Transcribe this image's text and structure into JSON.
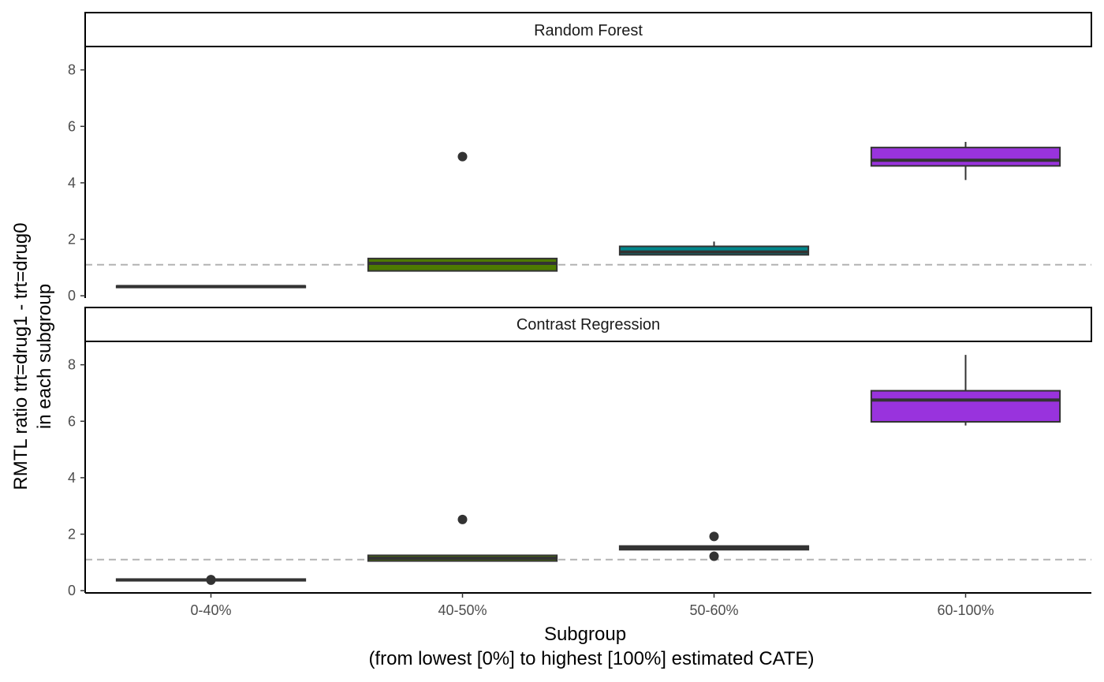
{
  "chart_data": {
    "type": "box",
    "xlabel": "Subgroup",
    "xlabel_sub": "(from lowest [0%] to highest [100%] estimated CATE)",
    "ylabel": "RMTL ratio trt=drug1 - trt=drug0",
    "ylabel_sub": "in each subgroup",
    "categories": [
      "0-40%",
      "40-50%",
      "50-60%",
      "60-100%"
    ],
    "yticks": [
      0,
      2,
      4,
      6,
      8
    ],
    "ylim": [
      -0.08,
      8.8
    ],
    "reference_line": 1.1,
    "colors": [
      "#F8766D",
      "#4D7A00",
      "#00868B",
      "#9933DD"
    ],
    "panels": [
      {
        "title": "Random Forest",
        "boxes": [
          {
            "category": "0-40%",
            "min": 0.31,
            "q1": 0.31,
            "median": 0.33,
            "q3": 0.35,
            "max": 0.35,
            "outliers": []
          },
          {
            "category": "40-50%",
            "min": 0.88,
            "q1": 0.88,
            "median": 1.15,
            "q3": 1.32,
            "max": 1.32,
            "outliers": [
              4.93
            ]
          },
          {
            "category": "50-60%",
            "min": 1.45,
            "q1": 1.45,
            "median": 1.55,
            "q3": 1.75,
            "max": 1.92,
            "outliers": []
          },
          {
            "category": "60-100%",
            "min": 4.1,
            "q1": 4.6,
            "median": 4.8,
            "q3": 5.25,
            "max": 5.45,
            "outliers": []
          }
        ]
      },
      {
        "title": "Contrast Regression",
        "boxes": [
          {
            "category": "0-40%",
            "min": 0.35,
            "q1": 0.35,
            "median": 0.38,
            "q3": 0.41,
            "max": 0.41,
            "outliers": [
              0.37,
              0.39
            ]
          },
          {
            "category": "40-50%",
            "min": 1.05,
            "q1": 1.05,
            "median": 1.15,
            "q3": 1.25,
            "max": 1.25,
            "outliers": [
              2.52
            ]
          },
          {
            "category": "50-60%",
            "min": 1.45,
            "q1": 1.45,
            "median": 1.52,
            "q3": 1.58,
            "max": 1.58,
            "outliers": [
              1.92,
              1.22
            ]
          },
          {
            "category": "60-100%",
            "min": 5.85,
            "q1": 5.98,
            "median": 6.75,
            "q3": 7.08,
            "max": 8.35,
            "outliers": []
          }
        ]
      }
    ]
  }
}
